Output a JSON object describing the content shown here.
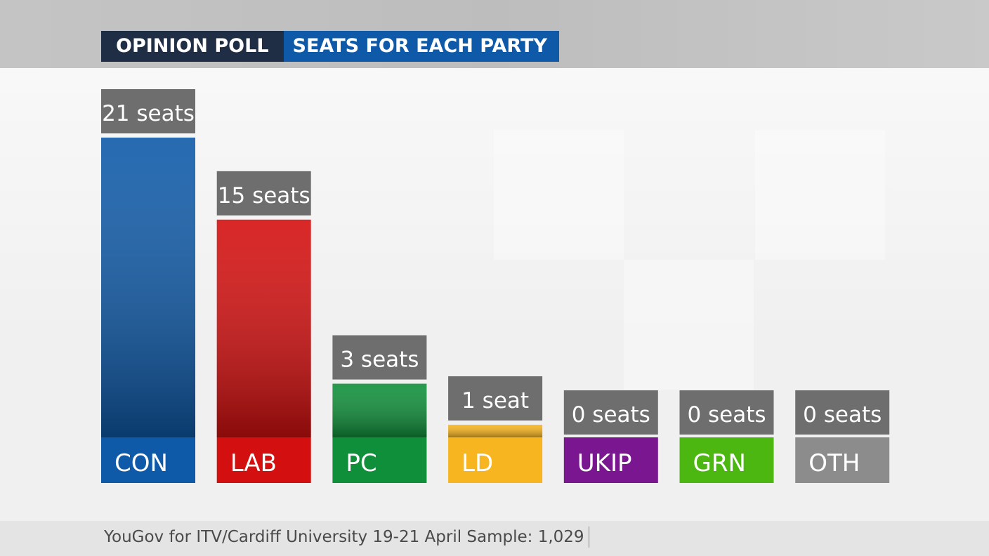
{
  "header": {
    "title_left": "OPINION POLL",
    "title_right": "SEATS FOR EACH PARTY"
  },
  "footer": {
    "source": "YouGov for ITV/Cardiff University 19-21 April Sample: 1,029"
  },
  "chart_data": {
    "type": "bar",
    "categories": [
      "CON",
      "LAB",
      "PC",
      "LD",
      "UKIP",
      "GRN",
      "OTH"
    ],
    "values": [
      21,
      15,
      3,
      1,
      0,
      0,
      0
    ],
    "value_labels": [
      "21 seats",
      "15 seats",
      "3 seats",
      "1 seat",
      "0 seats",
      "0 seats",
      "0 seats"
    ],
    "colors": [
      "#0f5aa8",
      "#d40f0f",
      "#0f8f3a",
      "#f7b51f",
      "#7a1690",
      "#4cb711",
      "#8c8c8c"
    ],
    "ylim": [
      0,
      21
    ]
  }
}
